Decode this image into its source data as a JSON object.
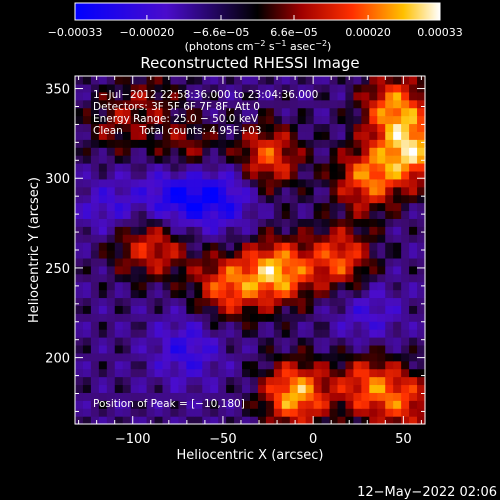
{
  "chart_data": {
    "type": "heatmap",
    "title": "Reconstructed RHESSI Image",
    "xlabel": "Heliocentric X (arcsec)",
    "ylabel": "Heliocentric Y (arcsec)",
    "xlim": [
      -132,
      62
    ],
    "ylim": [
      163,
      357
    ],
    "xticks": [
      {
        "value": -100,
        "label": "−100"
      },
      {
        "value": -50,
        "label": "−50"
      },
      {
        "value": 0,
        "label": "0"
      },
      {
        "value": 50,
        "label": "50"
      }
    ],
    "yticks": [
      {
        "value": 200,
        "label": "200"
      },
      {
        "value": 250,
        "label": "250"
      },
      {
        "value": 300,
        "label": "300"
      },
      {
        "value": 350,
        "label": "350"
      }
    ],
    "colorbar": {
      "min": -0.00033,
      "max": 0.00033,
      "ticks": [
        {
          "value": -0.00033,
          "label": "−0.00033"
        },
        {
          "value": -0.0002,
          "label": "−0.00020"
        },
        {
          "value": -6.6e-05,
          "label": "−6.6e−05"
        },
        {
          "value": 6.6e-05,
          "label": "6.6e−05"
        },
        {
          "value": 0.0002,
          "label": "0.00020"
        },
        {
          "value": 0.00033,
          "label": "0.00033"
        }
      ],
      "units_main": "(photons cm",
      "units_sup1": "−2",
      "units_mid": " s",
      "units_sup2": "−1",
      "units_end": " asec",
      "units_sup3": "−2",
      "units_close": ")"
    },
    "annotations": [
      "1−Jul−2012 22:58:36.000 to 23:04:36.000",
      "Detectors: 3F 5F 6F 7F 8F, Att 0",
      "Energy Range: 25.0 − 50.0 keV",
      "Clean     Total counts: 4.95E+03"
    ],
    "peak_label": "Position of Peak = [−10,180]",
    "peak": {
      "x": -10,
      "y": 180
    },
    "sources": [
      {
        "x": -20,
        "y": 248,
        "amp": 1.0
      },
      {
        "x": -48,
        "y": 240,
        "amp": 0.75
      },
      {
        "x": -85,
        "y": 262,
        "amp": 0.55
      },
      {
        "x": -105,
        "y": 268,
        "amp": 0.45
      },
      {
        "x": 15,
        "y": 255,
        "amp": 0.75
      },
      {
        "x": 30,
        "y": 300,
        "amp": 0.8
      },
      {
        "x": -25,
        "y": 312,
        "amp": 0.75
      },
      {
        "x": -70,
        "y": 315,
        "amp": 0.45
      },
      {
        "x": 55,
        "y": 315,
        "amp": 0.95
      },
      {
        "x": 45,
        "y": 340,
        "amp": 0.85
      },
      {
        "x": -10,
        "y": 180,
        "amp": 1.0
      },
      {
        "x": 30,
        "y": 185,
        "amp": 0.7
      },
      {
        "x": 52,
        "y": 175,
        "amp": 0.6
      },
      {
        "x": -110,
        "y": 330,
        "amp": 0.35
      },
      {
        "x": -90,
        "y": 345,
        "amp": 0.3
      }
    ],
    "negatives": [
      {
        "x": -75,
        "y": 290,
        "amp": -0.7
      },
      {
        "x": -110,
        "y": 280,
        "amp": -0.55
      },
      {
        "x": -50,
        "y": 290,
        "amp": -0.55
      },
      {
        "x": -70,
        "y": 205,
        "amp": -0.45
      },
      {
        "x": 30,
        "y": 225,
        "amp": -0.35
      }
    ]
  },
  "footer": {
    "timestamp": "12−May−2022 02:06"
  },
  "colors": {
    "background": "#000000",
    "text": "#ffffff"
  }
}
